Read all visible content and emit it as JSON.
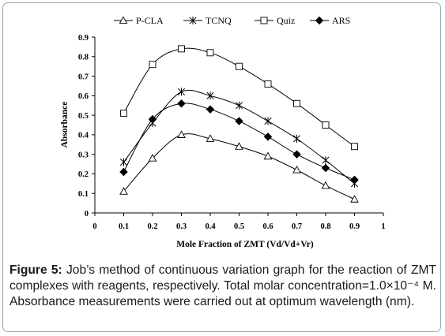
{
  "chart_data": {
    "type": "line",
    "x": [
      0.1,
      0.2,
      0.3,
      0.4,
      0.5,
      0.6,
      0.7,
      0.8,
      0.9
    ],
    "series": [
      {
        "name": "P-CLA",
        "marker": "triangle-open",
        "values": [
          0.11,
          0.28,
          0.4,
          0.38,
          0.34,
          0.29,
          0.22,
          0.14,
          0.07
        ]
      },
      {
        "name": "TCNQ",
        "marker": "asterisk",
        "values": [
          0.26,
          0.46,
          0.62,
          0.6,
          0.55,
          0.47,
          0.38,
          0.27,
          0.15
        ]
      },
      {
        "name": "Quiz",
        "marker": "square-open",
        "values": [
          0.51,
          0.76,
          0.84,
          0.82,
          0.75,
          0.66,
          0.56,
          0.45,
          0.34
        ]
      },
      {
        "name": "ARS",
        "marker": "diamond-filled",
        "values": [
          0.21,
          0.48,
          0.56,
          0.53,
          0.47,
          0.39,
          0.3,
          0.23,
          0.17
        ]
      }
    ],
    "xlabel": "Mole Fraction of ZMT (Vd/Vd+Vr)",
    "ylabel": "Absorbance",
    "xlim": [
      0,
      1
    ],
    "ylim": [
      0,
      0.9
    ],
    "xticks": [
      "0",
      "0.1",
      "0.2",
      "0.3",
      "0.4",
      "0.5",
      "0.6",
      "0.7",
      "0.8",
      "0.9",
      "1"
    ],
    "yticks": [
      "0",
      "0.1",
      "0.2",
      "0.3",
      "0.4",
      "0.5",
      "0.6",
      "0.7",
      "0.8",
      "0.9"
    ],
    "grid": false,
    "legend_position": "top",
    "line_color": "#000000"
  },
  "caption": {
    "label": "Figure 5:",
    "text": " Job’s method of continuous variation graph for the reaction of ZMT complexes with reagents, respectively. Total molar concentration=1.0×10⁻⁴ M. Absorbance measurements were carried out at optimum wavelength (nm)."
  }
}
